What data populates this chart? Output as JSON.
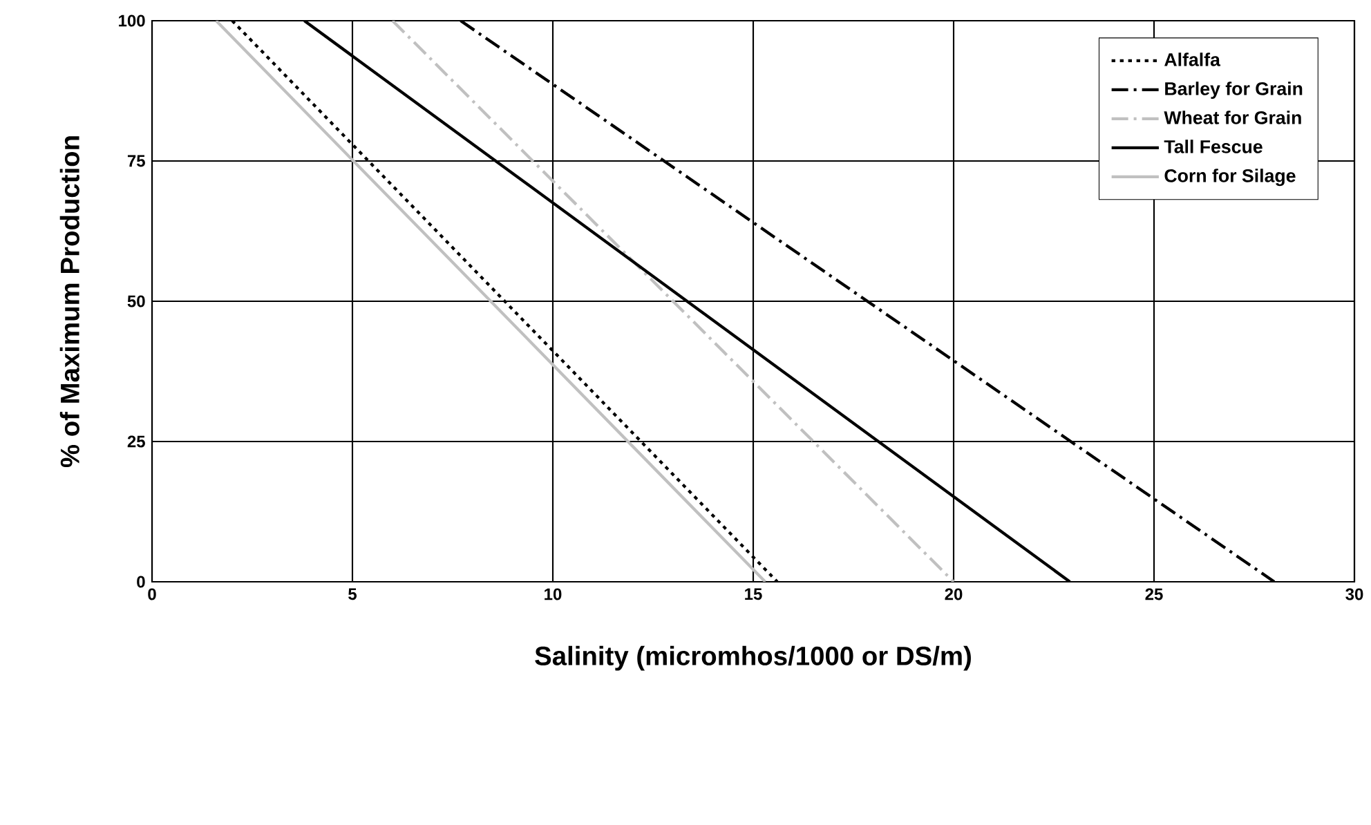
{
  "chart_data": {
    "type": "line",
    "xlabel": "Salinity (micromhos/1000 or DS/m)",
    "ylabel": "% of Maximum Production",
    "xlim": [
      0,
      30
    ],
    "xticks": [
      0,
      5,
      10,
      15,
      20,
      25,
      30
    ],
    "ylim": [
      0,
      100
    ],
    "yticks": [
      0,
      25,
      50,
      75,
      100
    ],
    "grid": true,
    "legend": "top right",
    "marker": "none",
    "series": [
      {
        "name": "Alfalfa",
        "color": "#000000",
        "line_style": "dotted",
        "x": [
          2.0,
          15.6
        ],
        "values": [
          100,
          0
        ]
      },
      {
        "name": "Barley for Grain",
        "color": "#000000",
        "line_style": "dashed",
        "x": [
          7.7,
          28.0
        ],
        "values": [
          100,
          0
        ]
      },
      {
        "name": "Wheat for Grain",
        "color": "#c0c0c0",
        "line_style": "dashed",
        "x": [
          6.0,
          20.0
        ],
        "values": [
          100,
          0
        ]
      },
      {
        "name": "Tall Fescue",
        "color": "#000000",
        "line_style": "solid",
        "x": [
          3.8,
          22.9
        ],
        "values": [
          100,
          0
        ]
      },
      {
        "name": "Corn for Silage",
        "color": "#c0c0c0",
        "line_style": "solid",
        "x": [
          1.6,
          15.3
        ],
        "values": [
          100,
          0
        ]
      }
    ]
  }
}
